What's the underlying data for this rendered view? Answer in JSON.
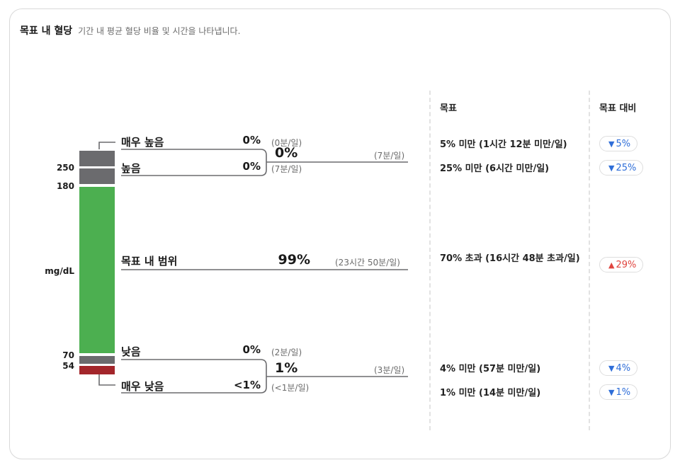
{
  "header": {
    "title": "목표 내 혈당",
    "subtitle": "기간 내 평균 혈당 비율 및 시간을 나타냅니다."
  },
  "columns": {
    "goal": "목표",
    "vs_goal": "목표 대비"
  },
  "axis": {
    "t250": "250",
    "t180": "180",
    "unit": "mg/dL",
    "t70": "70",
    "t54": "54"
  },
  "colors": {
    "very_high": "#6b6b6e",
    "high": "#6b6b6e",
    "in_range": "#4caf50",
    "low": "#6b6b6e",
    "very_low": "#a3262b",
    "down": "#2f6ed8",
    "up": "#e0453f"
  },
  "ranges": {
    "very_high": {
      "label": "매우 높음",
      "pct": "0%",
      "time": "(0분/일)",
      "goal": "5% 미만 (1시간 12분 미만/일)",
      "diff": "5%",
      "dir": "down"
    },
    "high": {
      "label": "높음",
      "pct": "0%",
      "time": "(7분/일)",
      "goal": "25% 미만 (6시간 미만/일)",
      "diff": "25%",
      "dir": "down"
    },
    "in_range": {
      "label": "목표 내 범위",
      "pct": "99%",
      "time": "(23시간 50분/일)",
      "goal": "70% 초과 (16시간 48분 초과/일)",
      "diff": "29%",
      "dir": "up"
    },
    "low": {
      "label": "낮음",
      "pct": "0%",
      "time": "(2분/일)",
      "goal": "4% 미만 (57분 미만/일)",
      "diff": "4%",
      "dir": "down"
    },
    "very_low": {
      "label": "매우 낮음",
      "pct": "<1%",
      "time": "(<1분/일)",
      "goal": "1% 미만 (14분 미만/일)",
      "diff": "1%",
      "dir": "down"
    }
  },
  "groups": {
    "high": {
      "pct": "0%",
      "time": "(7분/일)"
    },
    "low": {
      "pct": "1%",
      "time": "(3분/일)"
    }
  },
  "chart_data": {
    "type": "bar",
    "title": "목표 내 혈당",
    "subtitle": "기간 내 평균 혈당 비율 및 시간을 나타냅니다.",
    "ylabel": "mg/dL",
    "thresholds": [
      250,
      180,
      70,
      54
    ],
    "categories": [
      "매우 높음",
      "높음",
      "목표 내 범위",
      "낮음",
      "매우 낮음"
    ],
    "values_text": [
      "0%",
      "0%",
      "99%",
      "0%",
      "<1%"
    ],
    "times": [
      "0분/일",
      "7분/일",
      "23시간 50분/일",
      "2분/일",
      "<1분/일"
    ],
    "goals": [
      "5% 미만 (1시간 12분 미만/일)",
      "25% 미만 (6시간 미만/일)",
      "70% 초과 (16시간 48분 초과/일)",
      "4% 미만 (57분 미만/일)",
      "1% 미만 (14분 미만/일)"
    ],
    "vs_goal": [
      {
        "direction": "down",
        "value": "5%"
      },
      {
        "direction": "down",
        "value": "25%"
      },
      {
        "direction": "up",
        "value": "29%"
      },
      {
        "direction": "down",
        "value": "4%"
      },
      {
        "direction": "down",
        "value": "1%"
      }
    ],
    "combined": [
      {
        "name": "high",
        "value": "0%",
        "time": "7분/일"
      },
      {
        "name": "low",
        "value": "1%",
        "time": "3분/일"
      }
    ]
  }
}
